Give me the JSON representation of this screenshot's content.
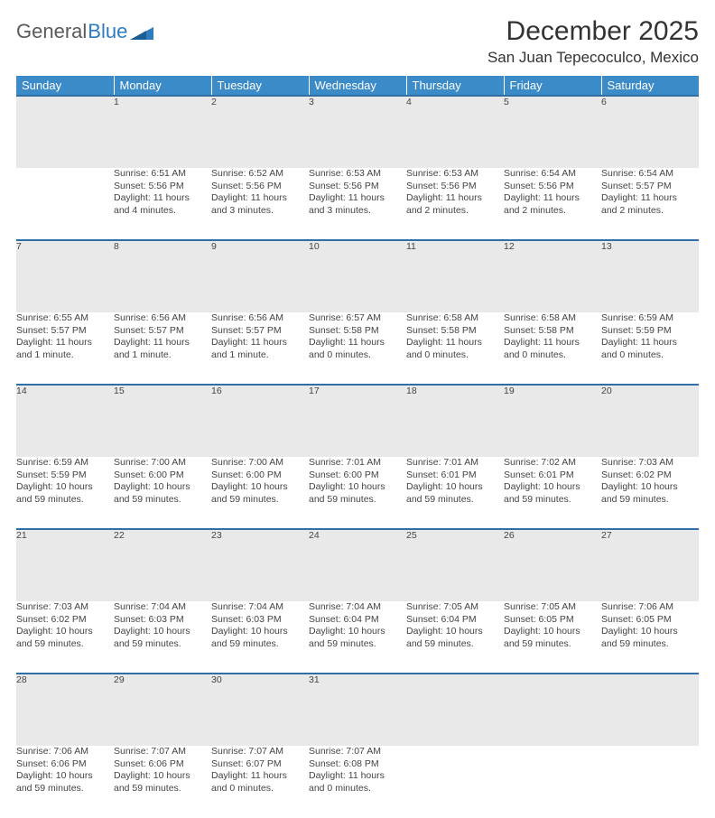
{
  "brand": {
    "word1": "General",
    "word2": "Blue"
  },
  "title": "December 2025",
  "location": "San Juan Tepecoculco, Mexico",
  "colors": {
    "header_bg": "#3b8bc8",
    "header_text": "#ffffff",
    "row_divider": "#2f6fa3",
    "daynum_bg": "#e9e9e9",
    "text": "#444444",
    "logo_blue": "#2f7bbf"
  },
  "weekdays": [
    "Sunday",
    "Monday",
    "Tuesday",
    "Wednesday",
    "Thursday",
    "Friday",
    "Saturday"
  ],
  "weeks": [
    {
      "nums": [
        "",
        "1",
        "2",
        "3",
        "4",
        "5",
        "6"
      ],
      "cells": [
        null,
        {
          "sunrise": "Sunrise: 6:51 AM",
          "sunset": "Sunset: 5:56 PM",
          "dl1": "Daylight: 11 hours",
          "dl2": "and 4 minutes."
        },
        {
          "sunrise": "Sunrise: 6:52 AM",
          "sunset": "Sunset: 5:56 PM",
          "dl1": "Daylight: 11 hours",
          "dl2": "and 3 minutes."
        },
        {
          "sunrise": "Sunrise: 6:53 AM",
          "sunset": "Sunset: 5:56 PM",
          "dl1": "Daylight: 11 hours",
          "dl2": "and 3 minutes."
        },
        {
          "sunrise": "Sunrise: 6:53 AM",
          "sunset": "Sunset: 5:56 PM",
          "dl1": "Daylight: 11 hours",
          "dl2": "and 2 minutes."
        },
        {
          "sunrise": "Sunrise: 6:54 AM",
          "sunset": "Sunset: 5:56 PM",
          "dl1": "Daylight: 11 hours",
          "dl2": "and 2 minutes."
        },
        {
          "sunrise": "Sunrise: 6:54 AM",
          "sunset": "Sunset: 5:57 PM",
          "dl1": "Daylight: 11 hours",
          "dl2": "and 2 minutes."
        }
      ]
    },
    {
      "nums": [
        "7",
        "8",
        "9",
        "10",
        "11",
        "12",
        "13"
      ],
      "cells": [
        {
          "sunrise": "Sunrise: 6:55 AM",
          "sunset": "Sunset: 5:57 PM",
          "dl1": "Daylight: 11 hours",
          "dl2": "and 1 minute."
        },
        {
          "sunrise": "Sunrise: 6:56 AM",
          "sunset": "Sunset: 5:57 PM",
          "dl1": "Daylight: 11 hours",
          "dl2": "and 1 minute."
        },
        {
          "sunrise": "Sunrise: 6:56 AM",
          "sunset": "Sunset: 5:57 PM",
          "dl1": "Daylight: 11 hours",
          "dl2": "and 1 minute."
        },
        {
          "sunrise": "Sunrise: 6:57 AM",
          "sunset": "Sunset: 5:58 PM",
          "dl1": "Daylight: 11 hours",
          "dl2": "and 0 minutes."
        },
        {
          "sunrise": "Sunrise: 6:58 AM",
          "sunset": "Sunset: 5:58 PM",
          "dl1": "Daylight: 11 hours",
          "dl2": "and 0 minutes."
        },
        {
          "sunrise": "Sunrise: 6:58 AM",
          "sunset": "Sunset: 5:58 PM",
          "dl1": "Daylight: 11 hours",
          "dl2": "and 0 minutes."
        },
        {
          "sunrise": "Sunrise: 6:59 AM",
          "sunset": "Sunset: 5:59 PM",
          "dl1": "Daylight: 11 hours",
          "dl2": "and 0 minutes."
        }
      ]
    },
    {
      "nums": [
        "14",
        "15",
        "16",
        "17",
        "18",
        "19",
        "20"
      ],
      "cells": [
        {
          "sunrise": "Sunrise: 6:59 AM",
          "sunset": "Sunset: 5:59 PM",
          "dl1": "Daylight: 10 hours",
          "dl2": "and 59 minutes."
        },
        {
          "sunrise": "Sunrise: 7:00 AM",
          "sunset": "Sunset: 6:00 PM",
          "dl1": "Daylight: 10 hours",
          "dl2": "and 59 minutes."
        },
        {
          "sunrise": "Sunrise: 7:00 AM",
          "sunset": "Sunset: 6:00 PM",
          "dl1": "Daylight: 10 hours",
          "dl2": "and 59 minutes."
        },
        {
          "sunrise": "Sunrise: 7:01 AM",
          "sunset": "Sunset: 6:00 PM",
          "dl1": "Daylight: 10 hours",
          "dl2": "and 59 minutes."
        },
        {
          "sunrise": "Sunrise: 7:01 AM",
          "sunset": "Sunset: 6:01 PM",
          "dl1": "Daylight: 10 hours",
          "dl2": "and 59 minutes."
        },
        {
          "sunrise": "Sunrise: 7:02 AM",
          "sunset": "Sunset: 6:01 PM",
          "dl1": "Daylight: 10 hours",
          "dl2": "and 59 minutes."
        },
        {
          "sunrise": "Sunrise: 7:03 AM",
          "sunset": "Sunset: 6:02 PM",
          "dl1": "Daylight: 10 hours",
          "dl2": "and 59 minutes."
        }
      ]
    },
    {
      "nums": [
        "21",
        "22",
        "23",
        "24",
        "25",
        "26",
        "27"
      ],
      "cells": [
        {
          "sunrise": "Sunrise: 7:03 AM",
          "sunset": "Sunset: 6:02 PM",
          "dl1": "Daylight: 10 hours",
          "dl2": "and 59 minutes."
        },
        {
          "sunrise": "Sunrise: 7:04 AM",
          "sunset": "Sunset: 6:03 PM",
          "dl1": "Daylight: 10 hours",
          "dl2": "and 59 minutes."
        },
        {
          "sunrise": "Sunrise: 7:04 AM",
          "sunset": "Sunset: 6:03 PM",
          "dl1": "Daylight: 10 hours",
          "dl2": "and 59 minutes."
        },
        {
          "sunrise": "Sunrise: 7:04 AM",
          "sunset": "Sunset: 6:04 PM",
          "dl1": "Daylight: 10 hours",
          "dl2": "and 59 minutes."
        },
        {
          "sunrise": "Sunrise: 7:05 AM",
          "sunset": "Sunset: 6:04 PM",
          "dl1": "Daylight: 10 hours",
          "dl2": "and 59 minutes."
        },
        {
          "sunrise": "Sunrise: 7:05 AM",
          "sunset": "Sunset: 6:05 PM",
          "dl1": "Daylight: 10 hours",
          "dl2": "and 59 minutes."
        },
        {
          "sunrise": "Sunrise: 7:06 AM",
          "sunset": "Sunset: 6:05 PM",
          "dl1": "Daylight: 10 hours",
          "dl2": "and 59 minutes."
        }
      ]
    },
    {
      "nums": [
        "28",
        "29",
        "30",
        "31",
        "",
        "",
        ""
      ],
      "cells": [
        {
          "sunrise": "Sunrise: 7:06 AM",
          "sunset": "Sunset: 6:06 PM",
          "dl1": "Daylight: 10 hours",
          "dl2": "and 59 minutes."
        },
        {
          "sunrise": "Sunrise: 7:07 AM",
          "sunset": "Sunset: 6:06 PM",
          "dl1": "Daylight: 10 hours",
          "dl2": "and 59 minutes."
        },
        {
          "sunrise": "Sunrise: 7:07 AM",
          "sunset": "Sunset: 6:07 PM",
          "dl1": "Daylight: 11 hours",
          "dl2": "and 0 minutes."
        },
        {
          "sunrise": "Sunrise: 7:07 AM",
          "sunset": "Sunset: 6:08 PM",
          "dl1": "Daylight: 11 hours",
          "dl2": "and 0 minutes."
        },
        null,
        null,
        null
      ]
    }
  ]
}
